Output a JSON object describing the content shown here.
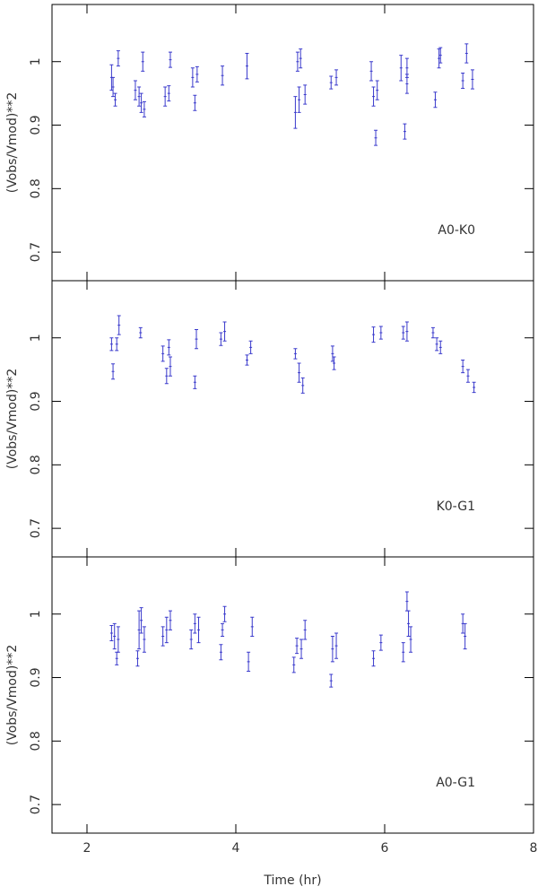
{
  "chart_data": [
    {
      "type": "errorbar",
      "ylabel": "(Vobs/Vmod)**2",
      "annotation": "A0-K0",
      "color": "#3a3acc",
      "xlim": [
        1.53,
        8
      ],
      "xticks": [
        2,
        4,
        6,
        8
      ],
      "ylim": [
        0.655,
        1.09
      ],
      "yticks": [
        0.7,
        0.8,
        0.9,
        1
      ],
      "x": [
        2.33,
        2.35,
        2.38,
        2.42,
        2.65,
        2.7,
        2.73,
        2.75,
        2.77,
        3.05,
        3.1,
        3.12,
        3.42,
        3.45,
        3.48,
        3.82,
        4.15,
        4.8,
        4.83,
        4.87,
        4.85,
        4.93,
        5.28,
        5.35,
        5.82,
        5.85,
        5.88,
        5.9,
        6.22,
        6.27,
        6.3,
        6.3,
        6.68,
        6.73,
        6.75,
        7.05,
        7.1,
        7.18
      ],
      "values": [
        0.975,
        0.96,
        0.94,
        1.005,
        0.955,
        0.945,
        0.935,
        1.0,
        0.925,
        0.945,
        0.95,
        1.003,
        0.975,
        0.935,
        0.98,
        0.978,
        0.993,
        0.92,
        1.0,
        1.005,
        0.94,
        0.948,
        0.967,
        0.975,
        0.985,
        0.945,
        0.88,
        0.955,
        0.99,
        0.89,
        0.99,
        0.965,
        0.94,
        1.005,
        1.01,
        0.97,
        1.013,
        0.972
      ],
      "errors": [
        0.02,
        0.015,
        0.01,
        0.012,
        0.015,
        0.015,
        0.015,
        0.015,
        0.012,
        0.015,
        0.012,
        0.012,
        0.015,
        0.012,
        0.012,
        0.015,
        0.02,
        0.025,
        0.015,
        0.015,
        0.02,
        0.015,
        0.01,
        0.012,
        0.015,
        0.015,
        0.012,
        0.015,
        0.02,
        0.012,
        0.015,
        0.015,
        0.012,
        0.015,
        0.012,
        0.012,
        0.015,
        0.015
      ]
    },
    {
      "type": "errorbar",
      "ylabel": "(Vobs/Vmod)**2",
      "annotation": "K0-G1",
      "color": "#3a3acc",
      "xlim": [
        1.53,
        8
      ],
      "xticks": [
        2,
        4,
        6,
        8
      ],
      "ylim": [
        0.655,
        1.09
      ],
      "yticks": [
        0.7,
        0.8,
        0.9,
        1
      ],
      "x": [
        2.33,
        2.35,
        2.4,
        2.43,
        2.72,
        3.02,
        3.07,
        3.1,
        3.12,
        3.45,
        3.47,
        3.8,
        3.85,
        4.15,
        4.2,
        4.8,
        4.85,
        4.9,
        5.3,
        5.32,
        5.85,
        5.95,
        6.25,
        6.3,
        6.65,
        6.7,
        6.75,
        7.05,
        7.12,
        7.2
      ],
      "values": [
        0.99,
        0.947,
        0.99,
        1.02,
        1.008,
        0.975,
        0.94,
        0.985,
        0.955,
        0.93,
        0.998,
        0.998,
        1.01,
        0.965,
        0.985,
        0.975,
        0.945,
        0.925,
        0.975,
        0.96,
        1.005,
        1.008,
        1.008,
        1.01,
        1.008,
        0.99,
        0.985,
        0.955,
        0.94,
        0.922
      ],
      "errors": [
        0.01,
        0.012,
        0.01,
        0.015,
        0.008,
        0.012,
        0.012,
        0.012,
        0.015,
        0.01,
        0.015,
        0.01,
        0.015,
        0.008,
        0.01,
        0.008,
        0.015,
        0.012,
        0.012,
        0.01,
        0.012,
        0.01,
        0.01,
        0.015,
        0.008,
        0.01,
        0.01,
        0.01,
        0.01,
        0.008
      ]
    },
    {
      "type": "errorbar",
      "ylabel": "(Vobs/Vmod)**2",
      "xlabel": "Time (hr)",
      "annotation": "A0-G1",
      "color": "#3a3acc",
      "xlim": [
        1.53,
        8
      ],
      "xticks": [
        2,
        4,
        6,
        8
      ],
      "ylim": [
        0.655,
        1.09
      ],
      "yticks": [
        0.7,
        0.8,
        0.9,
        1
      ],
      "x": [
        2.33,
        2.37,
        2.4,
        2.42,
        2.68,
        2.7,
        2.73,
        2.77,
        3.02,
        3.07,
        3.12,
        3.4,
        3.45,
        3.5,
        3.8,
        3.82,
        3.85,
        4.17,
        4.22,
        4.78,
        4.82,
        4.88,
        4.93,
        5.28,
        5.3,
        5.35,
        5.85,
        5.95,
        6.25,
        6.3,
        6.32,
        6.35,
        7.05,
        7.08
      ],
      "values": [
        0.97,
        0.965,
        0.93,
        0.96,
        0.93,
        0.975,
        0.99,
        0.96,
        0.965,
        0.975,
        0.99,
        0.96,
        0.985,
        0.975,
        0.94,
        0.975,
        1.0,
        0.925,
        0.98,
        0.92,
        0.95,
        0.945,
        0.975,
        0.895,
        0.945,
        0.95,
        0.93,
        0.955,
        0.94,
        1.02,
        0.985,
        0.96,
        0.985,
        0.965
      ],
      "errors": [
        0.012,
        0.02,
        0.01,
        0.02,
        0.012,
        0.03,
        0.02,
        0.02,
        0.015,
        0.02,
        0.015,
        0.015,
        0.015,
        0.02,
        0.012,
        0.01,
        0.012,
        0.015,
        0.015,
        0.012,
        0.012,
        0.015,
        0.015,
        0.01,
        0.02,
        0.02,
        0.012,
        0.012,
        0.015,
        0.015,
        0.02,
        0.02,
        0.015,
        0.02
      ]
    }
  ]
}
